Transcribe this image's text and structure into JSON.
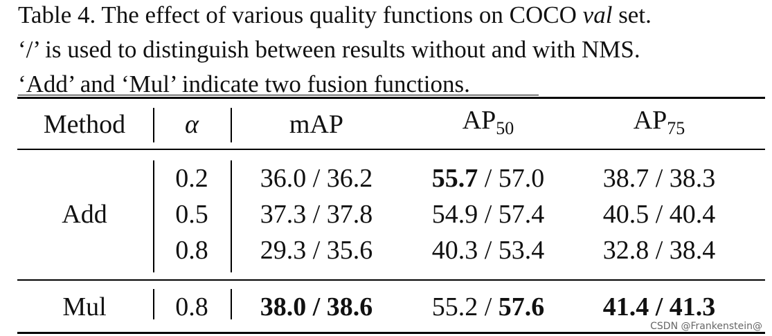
{
  "caption": {
    "lines": [
      [
        {
          "text": "Table 4. The effect of various quality functions on COCO "
        },
        {
          "text": "val",
          "italic": true
        },
        {
          "text": " set."
        }
      ],
      [
        {
          "text": "‘/’ is used to distinguish between results without and with NMS."
        }
      ],
      [
        {
          "text": "‘Add’ and ‘Mul’ indicate two fusion functions."
        }
      ]
    ]
  },
  "table": {
    "separator": "/",
    "header": [
      {
        "text": "Method"
      },
      {
        "text": "α",
        "italic": true
      },
      {
        "text": "mAP"
      },
      {
        "text": "AP",
        "sub": "50"
      },
      {
        "text": "AP",
        "sub": "75"
      }
    ],
    "groups": [
      {
        "method": "Add",
        "rows": [
          {
            "alpha": "0.2",
            "cells": [
              {
                "values": [
                  "36.0",
                  "36.2"
                ],
                "bold": [
                  false,
                  false
                ]
              },
              {
                "values": [
                  "55.7",
                  "57.0"
                ],
                "bold": [
                  true,
                  false
                ]
              },
              {
                "values": [
                  "38.7",
                  "38.3"
                ],
                "bold": [
                  false,
                  false
                ]
              }
            ]
          },
          {
            "alpha": "0.5",
            "cells": [
              {
                "values": [
                  "37.3",
                  "37.8"
                ],
                "bold": [
                  false,
                  false
                ]
              },
              {
                "values": [
                  "54.9",
                  "57.4"
                ],
                "bold": [
                  false,
                  false
                ]
              },
              {
                "values": [
                  "40.5",
                  "40.4"
                ],
                "bold": [
                  false,
                  false
                ]
              }
            ]
          },
          {
            "alpha": "0.8",
            "cells": [
              {
                "values": [
                  "29.3",
                  "35.6"
                ],
                "bold": [
                  false,
                  false
                ]
              },
              {
                "values": [
                  "40.3",
                  "53.4"
                ],
                "bold": [
                  false,
                  false
                ]
              },
              {
                "values": [
                  "32.8",
                  "38.4"
                ],
                "bold": [
                  false,
                  false
                ]
              }
            ]
          }
        ]
      },
      {
        "method": "Mul",
        "rows": [
          {
            "alpha": "0.8",
            "cells": [
              {
                "values": [
                  "38.0",
                  "38.6"
                ],
                "bold": [
                  true,
                  true
                ]
              },
              {
                "values": [
                  "55.2",
                  "57.6"
                ],
                "bold": [
                  false,
                  true
                ]
              },
              {
                "values": [
                  "41.4",
                  "41.3"
                ],
                "bold": [
                  true,
                  true
                ]
              }
            ]
          }
        ]
      }
    ]
  },
  "watermark": "CSDN @Frankenstein@"
}
